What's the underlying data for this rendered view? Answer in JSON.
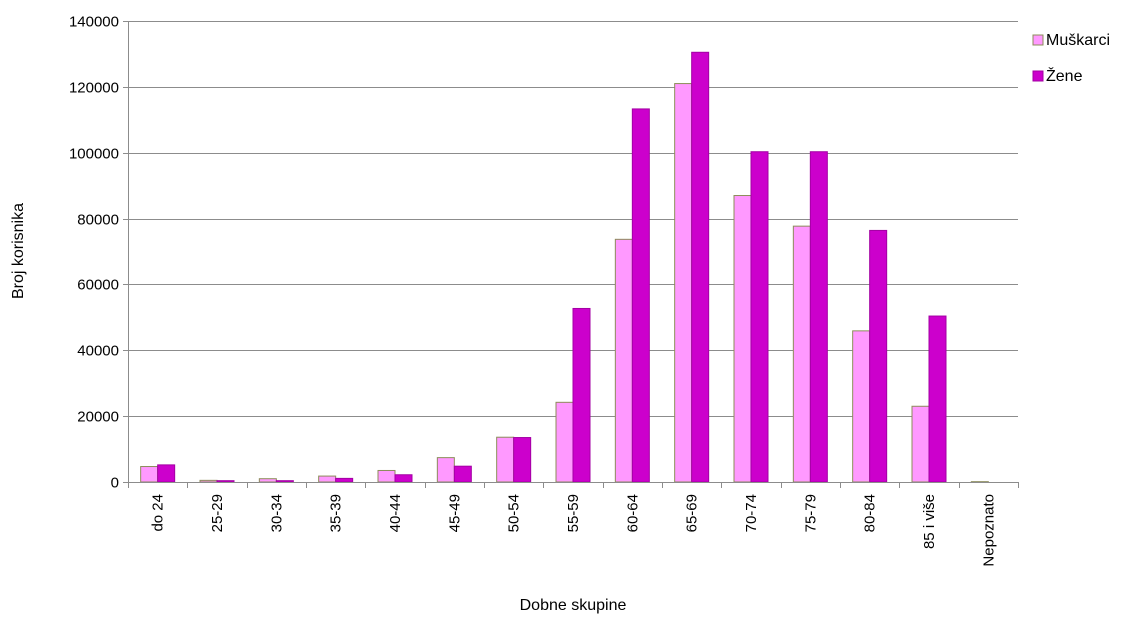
{
  "chart_data": {
    "type": "bar",
    "title": "",
    "xlabel": "Dobne skupine",
    "ylabel": "Broj korisnika",
    "ylim": [
      0,
      140000
    ],
    "yticks": [
      0,
      20000,
      40000,
      60000,
      80000,
      100000,
      120000,
      140000
    ],
    "ytick_labels": [
      "0",
      "20000",
      "40000",
      "60000",
      "80000",
      "100000",
      "120000",
      "140000"
    ],
    "grid": true,
    "legend_position": "top-right",
    "categories": [
      "do 24",
      "25-29",
      "30-34",
      "35-39",
      "40-44",
      "45-49",
      "50-54",
      "55-59",
      "60-64",
      "65-69",
      "70-74",
      "75-79",
      "80-84",
      "85 i više",
      "Nepoznato"
    ],
    "series": [
      {
        "name": "Muškarci",
        "color": "#ff99ff",
        "edge_color": "#8c8c5a",
        "values": [
          4700,
          500,
          1000,
          1800,
          3500,
          7400,
          13600,
          24200,
          73700,
          121000,
          87000,
          77700,
          45900,
          23000,
          100
        ]
      },
      {
        "name": "Žene",
        "color": "#cc00cc",
        "edge_color": "#a300a3",
        "values": [
          5200,
          400,
          400,
          1100,
          2200,
          4800,
          13500,
          52700,
          113300,
          130500,
          100300,
          100300,
          76400,
          50400,
          0
        ]
      }
    ]
  }
}
